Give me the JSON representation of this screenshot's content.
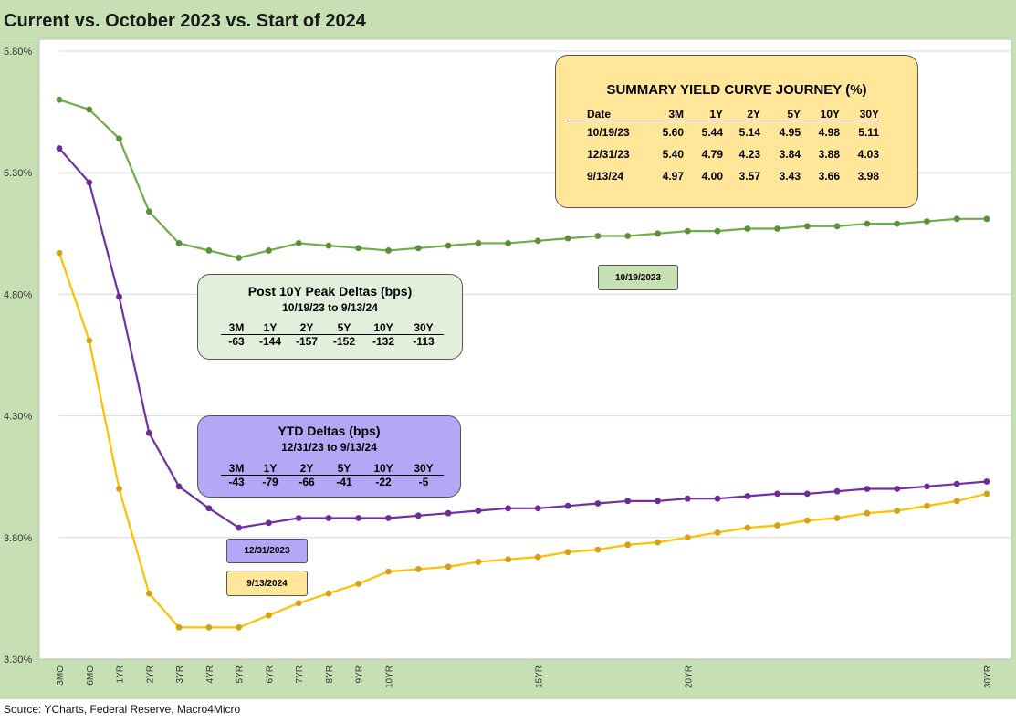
{
  "title": "Current vs. October 2023 vs. Start of 2024",
  "source": "Source: YCharts, Federal Reserve, Macro4Micro",
  "colors": {
    "series_2023_10": "#70ad47",
    "series_2023_12": "#7030a0",
    "series_2024_09": "#ffc000"
  },
  "chart_data": {
    "type": "line",
    "title": "Current vs. October 2023 vs. Start of 2024",
    "xlabel": "",
    "ylabel": "",
    "ylim": [
      3.3,
      5.8
    ],
    "yticks": [
      "5.80%",
      "5.30%",
      "4.80%",
      "4.30%",
      "3.80%",
      "3.30%"
    ],
    "ytick_values": [
      5.8,
      5.3,
      4.8,
      4.3,
      3.8,
      3.3
    ],
    "grid": true,
    "x": [
      "3MO",
      "6MO",
      "1YR",
      "2YR",
      "3YR",
      "4YR",
      "5YR",
      "6YR",
      "7YR",
      "8YR",
      "9YR",
      "10YR",
      "11",
      "12",
      "13",
      "14",
      "15YR",
      "16",
      "17",
      "18",
      "19",
      "20YR",
      "21",
      "22",
      "23",
      "24",
      "25",
      "26",
      "27",
      "28",
      "29",
      "30YR"
    ],
    "xtick_labels": [
      "3MO",
      "6MO",
      "1YR",
      "2YR",
      "3YR",
      "4YR",
      "5YR",
      "6YR",
      "7YR",
      "8YR",
      "9YR",
      "10YR",
      "",
      "",
      "",
      "",
      "15YR",
      "",
      "",
      "",
      "",
      "20YR",
      "",
      "",
      "",
      "",
      "",
      "",
      "",
      "",
      "",
      "30YR"
    ],
    "series": [
      {
        "name": "10/19/2023",
        "color": "#70ad47",
        "values": [
          5.6,
          5.56,
          5.44,
          5.14,
          5.01,
          4.98,
          4.95,
          4.98,
          5.01,
          5.0,
          4.99,
          4.98,
          4.99,
          5.0,
          5.01,
          5.01,
          5.02,
          5.03,
          5.04,
          5.04,
          5.05,
          5.06,
          5.06,
          5.07,
          5.07,
          5.08,
          5.08,
          5.09,
          5.09,
          5.1,
          5.11,
          5.11
        ]
      },
      {
        "name": "12/31/2023",
        "color": "#7030a0",
        "values": [
          5.4,
          5.26,
          4.79,
          4.23,
          4.01,
          3.92,
          3.84,
          3.86,
          3.88,
          3.88,
          3.88,
          3.88,
          3.89,
          3.9,
          3.91,
          3.92,
          3.92,
          3.93,
          3.94,
          3.95,
          3.95,
          3.96,
          3.96,
          3.97,
          3.98,
          3.98,
          3.99,
          4.0,
          4.0,
          4.01,
          4.02,
          4.03
        ]
      },
      {
        "name": "9/13/2024",
        "color": "#ffc000",
        "values": [
          4.97,
          4.61,
          4.0,
          3.57,
          3.43,
          3.43,
          3.43,
          3.48,
          3.53,
          3.57,
          3.61,
          3.66,
          3.67,
          3.68,
          3.7,
          3.71,
          3.72,
          3.74,
          3.75,
          3.77,
          3.78,
          3.8,
          3.82,
          3.84,
          3.85,
          3.87,
          3.88,
          3.9,
          3.91,
          3.93,
          3.95,
          3.98
        ]
      }
    ]
  },
  "summary_box": {
    "title": "SUMMARY YIELD CURVE JOURNEY (%)",
    "headers": [
      "Date",
      "3M",
      "1Y",
      "2Y",
      "5Y",
      "10Y",
      "30Y"
    ],
    "rows": [
      [
        "10/19/23",
        "5.60",
        "5.44",
        "5.14",
        "4.95",
        "4.98",
        "5.11"
      ],
      [
        "12/31/23",
        "5.40",
        "4.79",
        "4.23",
        "3.84",
        "3.88",
        "4.03"
      ],
      [
        "9/13/24",
        "4.97",
        "4.00",
        "3.57",
        "3.43",
        "3.66",
        "3.98"
      ]
    ],
    "bg": "#ffe699"
  },
  "post_box": {
    "title": "Post 10Y Peak Deltas (bps)",
    "subtitle": "10/19/23 to 9/13/24",
    "headers": [
      "3M",
      "1Y",
      "2Y",
      "5Y",
      "10Y",
      "30Y"
    ],
    "values": [
      "-63",
      "-144",
      "-157",
      "-152",
      "-132",
      "-113"
    ],
    "bg": "#e2efda"
  },
  "ytd_box": {
    "title": "YTD Deltas (bps)",
    "subtitle": "12/31/23 to 9/13/24",
    "headers": [
      "3M",
      "1Y",
      "2Y",
      "5Y",
      "10Y",
      "30Y"
    ],
    "values": [
      "-43",
      "-79",
      "-66",
      "-41",
      "-22",
      "-5"
    ],
    "bg": "#b4a7f6"
  },
  "labels": {
    "green": {
      "text": "10/19/2023",
      "bg": "#c6e0b4"
    },
    "purple": {
      "text": "12/31/2023",
      "bg": "#b4a7f6"
    },
    "gold": {
      "text": "9/13/2024",
      "bg": "#ffe699"
    }
  }
}
